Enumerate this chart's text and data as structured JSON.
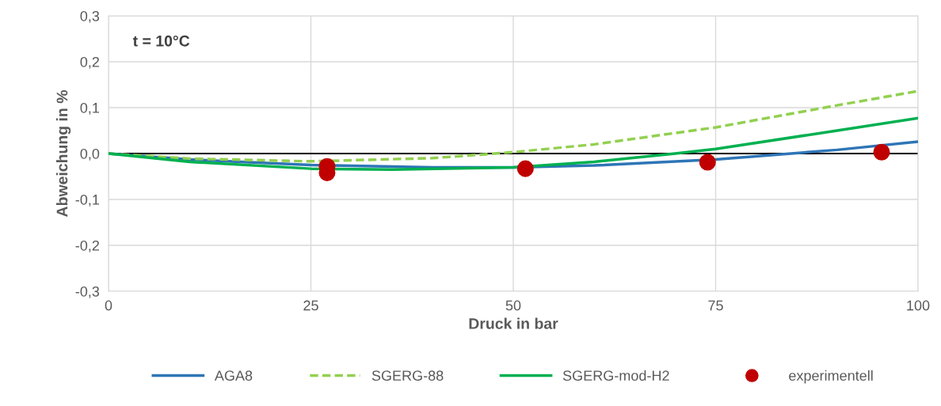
{
  "chart_data": {
    "type": "line",
    "xlabel": "Druck in bar",
    "ylabel": "Abweichung in %",
    "annotations": [
      "t = 10°C"
    ],
    "xlim": [
      0,
      100
    ],
    "xticks": [
      0,
      25,
      50,
      75,
      100
    ],
    "ylim": [
      -0.3,
      0.3
    ],
    "yticks": [
      {
        "value": -0.3,
        "label": "-0,3"
      },
      {
        "value": -0.2,
        "label": "-0,2"
      },
      {
        "value": -0.1,
        "label": "-0,1"
      },
      {
        "value": 0,
        "label": "0,0"
      },
      {
        "value": 0.1,
        "label": "0,1"
      },
      {
        "value": 0.2,
        "label": "0,2"
      },
      {
        "value": 0.3,
        "label": "0,3"
      }
    ],
    "grid": true,
    "legend": "bottom",
    "ref_lines": [
      {
        "axis": "y",
        "value": 0,
        "color": "#000000"
      }
    ],
    "series": [
      {
        "name": "AGA8",
        "color": "#2e75b6",
        "line_style": "solid",
        "x": [
          0,
          10,
          25,
          40,
          50,
          60,
          75,
          90,
          100
        ],
        "values": [
          0,
          -0.013,
          -0.025,
          -0.03,
          -0.03,
          -0.026,
          -0.013,
          0.008,
          0.026
        ]
      },
      {
        "name": "SGERG-88",
        "color": "#92d050",
        "line_style": "dashed",
        "x": [
          0,
          10,
          25,
          40,
          50,
          60,
          75,
          90,
          100
        ],
        "values": [
          0,
          -0.011,
          -0.017,
          -0.01,
          0.003,
          0.02,
          0.057,
          0.105,
          0.136
        ]
      },
      {
        "name": "SGERG-mod-H2",
        "color": "#00b050",
        "line_style": "solid",
        "x": [
          0,
          10,
          25,
          35,
          50,
          60,
          70,
          75,
          90,
          100
        ],
        "values": [
          0,
          -0.018,
          -0.033,
          -0.035,
          -0.03,
          -0.018,
          0.0,
          0.01,
          0.05,
          0.077
        ]
      },
      {
        "name": "experimentell",
        "color": "#c00000",
        "type": "scatter",
        "marker": "circle",
        "x": [
          27,
          27,
          51.5,
          74,
          95.5
        ],
        "values": [
          -0.028,
          -0.042,
          -0.033,
          -0.019,
          0.003
        ]
      }
    ]
  }
}
